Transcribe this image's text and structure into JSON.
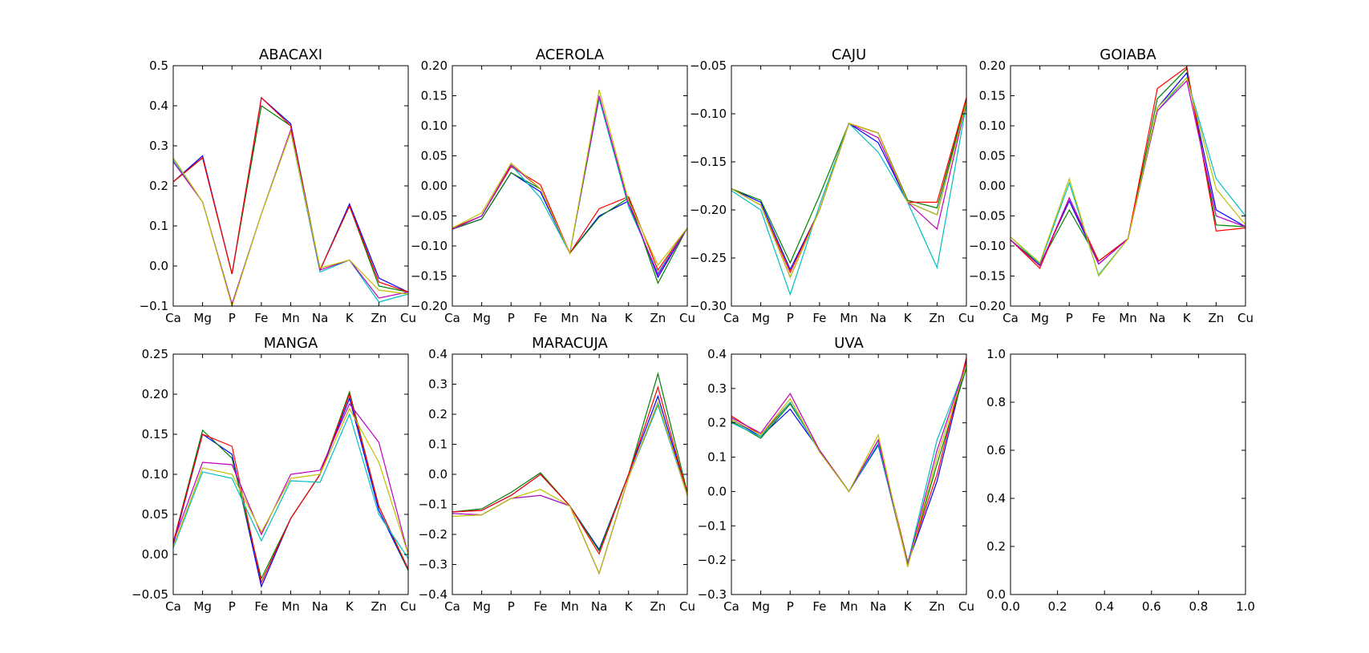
{
  "chart_data": [
    {
      "type": "line",
      "title": "ABACAXI",
      "categories": [
        "Ca",
        "Mg",
        "P",
        "Fe",
        "Mn",
        "Na",
        "K",
        "Zn",
        "Cu"
      ],
      "ylim": [
        -0.1,
        0.5
      ],
      "yticks": [
        "0.5",
        "0.4",
        "0.3",
        "0.2",
        "0.1",
        "0.0",
        "−0.1"
      ],
      "ytick_values": [
        0.5,
        0.4,
        0.3,
        0.2,
        0.1,
        0.0,
        -0.1
      ],
      "series": [
        {
          "color": "#0000ff",
          "values": [
            0.21,
            0.275,
            -0.02,
            0.42,
            0.355,
            -0.01,
            0.155,
            -0.03,
            -0.065
          ]
        },
        {
          "color": "#008000",
          "values": [
            0.21,
            0.27,
            -0.02,
            0.4,
            0.35,
            -0.01,
            0.15,
            -0.05,
            -0.065
          ]
        },
        {
          "color": "#ff0000",
          "values": [
            0.21,
            0.27,
            -0.02,
            0.42,
            0.35,
            -0.01,
            0.15,
            -0.04,
            -0.065
          ]
        },
        {
          "color": "#00bfbf",
          "values": [
            0.265,
            0.16,
            -0.095,
            0.13,
            0.335,
            -0.015,
            0.015,
            -0.09,
            -0.07
          ]
        },
        {
          "color": "#bf00bf",
          "values": [
            0.26,
            0.16,
            -0.095,
            0.13,
            0.34,
            -0.01,
            0.015,
            -0.08,
            -0.065
          ]
        },
        {
          "color": "#bfbf00",
          "values": [
            0.27,
            0.16,
            -0.1,
            0.13,
            0.335,
            -0.005,
            0.015,
            -0.06,
            -0.07
          ]
        }
      ]
    },
    {
      "type": "line",
      "title": "ACEROLA",
      "categories": [
        "Ca",
        "Mg",
        "P",
        "Fe",
        "Mn",
        "Na",
        "K",
        "Zn",
        "Cu"
      ],
      "ylim": [
        -0.2,
        0.2
      ],
      "yticks": [
        "0.20",
        "0.15",
        "0.10",
        "0.05",
        "0.00",
        "−0.05",
        "−0.10",
        "−0.15",
        "−0.20"
      ],
      "ytick_values": [
        0.2,
        0.15,
        0.1,
        0.05,
        0.0,
        -0.05,
        -0.1,
        -0.15,
        -0.2
      ],
      "series": [
        {
          "color": "#0000ff",
          "values": [
            -0.072,
            -0.055,
            0.022,
            -0.01,
            -0.112,
            -0.05,
            -0.025,
            -0.152,
            -0.07
          ]
        },
        {
          "color": "#008000",
          "values": [
            -0.072,
            -0.055,
            0.022,
            -0.005,
            -0.112,
            -0.052,
            -0.02,
            -0.162,
            -0.07
          ]
        },
        {
          "color": "#ff0000",
          "values": [
            -0.07,
            -0.05,
            0.032,
            0.002,
            -0.112,
            -0.038,
            -0.018,
            -0.14,
            -0.07
          ]
        },
        {
          "color": "#00bfbf",
          "values": [
            -0.072,
            -0.05,
            0.035,
            -0.02,
            -0.112,
            0.145,
            -0.035,
            -0.145,
            -0.07
          ]
        },
        {
          "color": "#bf00bf",
          "values": [
            -0.072,
            -0.05,
            0.035,
            -0.005,
            -0.112,
            0.15,
            -0.03,
            -0.148,
            -0.07
          ]
        },
        {
          "color": "#bfbf00",
          "values": [
            -0.07,
            -0.045,
            0.038,
            -0.005,
            -0.112,
            0.16,
            -0.025,
            -0.132,
            -0.07
          ]
        }
      ]
    },
    {
      "type": "line",
      "title": "CAJU",
      "categories": [
        "Ca",
        "Mg",
        "P",
        "Fe",
        "Mn",
        "Na",
        "K",
        "Zn",
        "Cu"
      ],
      "ylim": [
        -0.3,
        -0.05
      ],
      "yticks": [
        "−0.05",
        "−0.10",
        "−0.15",
        "−0.20",
        "−0.25",
        "−0.30"
      ],
      "ytick_values": [
        -0.05,
        -0.1,
        -0.15,
        -0.2,
        -0.25,
        -0.3
      ],
      "series": [
        {
          "color": "#0000ff",
          "values": [
            -0.178,
            -0.192,
            -0.262,
            -0.2,
            -0.11,
            -0.13,
            -0.192,
            -0.205,
            -0.085
          ]
        },
        {
          "color": "#008000",
          "values": [
            -0.178,
            -0.19,
            -0.255,
            -0.185,
            -0.11,
            -0.12,
            -0.19,
            -0.198,
            -0.085
          ]
        },
        {
          "color": "#ff0000",
          "values": [
            -0.178,
            -0.195,
            -0.265,
            -0.2,
            -0.11,
            -0.12,
            -0.192,
            -0.192,
            -0.083
          ]
        },
        {
          "color": "#00bfbf",
          "values": [
            -0.18,
            -0.2,
            -0.288,
            -0.195,
            -0.11,
            -0.14,
            -0.192,
            -0.26,
            -0.09
          ]
        },
        {
          "color": "#bf00bf",
          "values": [
            -0.178,
            -0.195,
            -0.27,
            -0.2,
            -0.11,
            -0.125,
            -0.192,
            -0.22,
            -0.088
          ]
        },
        {
          "color": "#bfbf00",
          "values": [
            -0.178,
            -0.195,
            -0.27,
            -0.2,
            -0.11,
            -0.12,
            -0.192,
            -0.205,
            -0.088
          ]
        }
      ]
    },
    {
      "type": "line",
      "title": "GOIABA",
      "categories": [
        "Ca",
        "Mg",
        "P",
        "Fe",
        "Mn",
        "Na",
        "K",
        "Zn",
        "Cu"
      ],
      "ylim": [
        -0.2,
        0.2
      ],
      "yticks": [
        "0.20",
        "0.15",
        "0.10",
        "0.05",
        "0.00",
        "−0.05",
        "−0.10",
        "−0.15",
        "−0.20"
      ],
      "ytick_values": [
        0.2,
        0.15,
        0.1,
        0.05,
        0.0,
        -0.05,
        -0.1,
        -0.15,
        -0.2
      ],
      "series": [
        {
          "color": "#0000ff",
          "values": [
            -0.09,
            -0.132,
            -0.025,
            -0.13,
            -0.088,
            0.13,
            0.188,
            -0.04,
            -0.068
          ]
        },
        {
          "color": "#008000",
          "values": [
            -0.09,
            -0.13,
            -0.04,
            -0.125,
            -0.088,
            0.145,
            0.195,
            -0.065,
            -0.068
          ]
        },
        {
          "color": "#ff0000",
          "values": [
            -0.09,
            -0.137,
            -0.02,
            -0.125,
            -0.088,
            0.162,
            0.198,
            -0.075,
            -0.07
          ]
        },
        {
          "color": "#00bfbf",
          "values": [
            -0.085,
            -0.13,
            0.005,
            -0.148,
            -0.088,
            0.125,
            0.18,
            0.012,
            -0.05
          ]
        },
        {
          "color": "#bf00bf",
          "values": [
            -0.09,
            -0.133,
            -0.02,
            -0.13,
            -0.088,
            0.125,
            0.175,
            -0.05,
            -0.068
          ]
        },
        {
          "color": "#bfbf00",
          "values": [
            -0.085,
            -0.128,
            0.012,
            -0.15,
            -0.088,
            0.13,
            0.18,
            -0.005,
            -0.065
          ]
        }
      ]
    },
    {
      "type": "line",
      "title": "MANGA",
      "categories": [
        "Ca",
        "Mg",
        "P",
        "Fe",
        "Mn",
        "Na",
        "K",
        "Zn",
        "Cu"
      ],
      "ylim": [
        -0.05,
        0.25
      ],
      "yticks": [
        "0.25",
        "0.20",
        "0.15",
        "0.10",
        "0.05",
        "0.00",
        "−0.05"
      ],
      "ytick_values": [
        0.25,
        0.2,
        0.15,
        0.1,
        0.05,
        0.0,
        -0.05
      ],
      "series": [
        {
          "color": "#0000ff",
          "values": [
            0.012,
            0.15,
            0.125,
            -0.04,
            0.045,
            0.1,
            0.195,
            0.055,
            -0.02
          ]
        },
        {
          "color": "#008000",
          "values": [
            0.015,
            0.155,
            0.12,
            -0.03,
            0.045,
            0.1,
            0.203,
            0.06,
            -0.02
          ]
        },
        {
          "color": "#ff0000",
          "values": [
            0.015,
            0.15,
            0.135,
            -0.035,
            0.045,
            0.1,
            0.2,
            0.06,
            -0.018
          ]
        },
        {
          "color": "#00bfbf",
          "values": [
            0.008,
            0.103,
            0.095,
            0.017,
            0.092,
            0.09,
            0.175,
            0.05,
            -0.005
          ]
        },
        {
          "color": "#bf00bf",
          "values": [
            0.015,
            0.115,
            0.112,
            0.025,
            0.1,
            0.105,
            0.188,
            0.14,
            0.0
          ]
        },
        {
          "color": "#bfbf00",
          "values": [
            0.01,
            0.108,
            0.1,
            0.028,
            0.095,
            0.1,
            0.182,
            0.115,
            0.0
          ]
        }
      ]
    },
    {
      "type": "line",
      "title": "MARACUJA",
      "categories": [
        "Ca",
        "Mg",
        "P",
        "Fe",
        "Mn",
        "Na",
        "K",
        "Zn",
        "Cu"
      ],
      "ylim": [
        -0.4,
        0.4
      ],
      "yticks": [
        "0.4",
        "0.3",
        "0.2",
        "0.1",
        "0.0",
        "−0.1",
        "−0.2",
        "−0.3",
        "−0.4"
      ],
      "ytick_values": [
        0.4,
        0.3,
        0.2,
        0.1,
        0.0,
        -0.1,
        -0.2,
        -0.3,
        -0.4
      ],
      "series": [
        {
          "color": "#0000ff",
          "values": [
            -0.125,
            -0.12,
            -0.07,
            0.0,
            -0.105,
            -0.25,
            0.0,
            0.26,
            -0.065
          ]
        },
        {
          "color": "#008000",
          "values": [
            -0.125,
            -0.115,
            -0.06,
            0.005,
            -0.105,
            -0.255,
            0.0,
            0.335,
            -0.06
          ]
        },
        {
          "color": "#ff0000",
          "values": [
            -0.125,
            -0.12,
            -0.07,
            0.0,
            -0.105,
            -0.265,
            0.0,
            0.29,
            -0.065
          ]
        },
        {
          "color": "#00bfbf",
          "values": [
            -0.13,
            -0.135,
            -0.08,
            -0.07,
            -0.105,
            -0.33,
            -0.01,
            0.23,
            -0.07
          ]
        },
        {
          "color": "#bf00bf",
          "values": [
            -0.13,
            -0.135,
            -0.08,
            -0.07,
            -0.105,
            -0.33,
            -0.01,
            0.24,
            -0.07
          ]
        },
        {
          "color": "#bfbf00",
          "values": [
            -0.14,
            -0.135,
            -0.08,
            -0.05,
            -0.105,
            -0.33,
            -0.01,
            0.24,
            -0.07
          ]
        }
      ]
    },
    {
      "type": "line",
      "title": "UVA",
      "categories": [
        "Ca",
        "Mg",
        "P",
        "Fe",
        "Mn",
        "Na",
        "K",
        "Zn",
        "Cu"
      ],
      "ylim": [
        -0.3,
        0.4
      ],
      "yticks": [
        "0.4",
        "0.3",
        "0.2",
        "0.1",
        "0.0",
        "−0.1",
        "−0.2",
        "−0.3"
      ],
      "ytick_values": [
        0.4,
        0.3,
        0.2,
        0.1,
        0.0,
        -0.1,
        -0.2,
        -0.3
      ],
      "series": [
        {
          "color": "#0000ff",
          "values": [
            0.21,
            0.16,
            0.24,
            0.12,
            0.0,
            0.135,
            -0.21,
            0.03,
            0.38
          ]
        },
        {
          "color": "#008000",
          "values": [
            0.205,
            0.155,
            0.255,
            0.12,
            0.0,
            0.14,
            -0.215,
            0.08,
            0.36
          ]
        },
        {
          "color": "#ff0000",
          "values": [
            0.22,
            0.165,
            0.26,
            0.12,
            0.0,
            0.15,
            -0.205,
            0.05,
            0.39
          ]
        },
        {
          "color": "#00bfbf",
          "values": [
            0.2,
            0.16,
            0.26,
            0.115,
            0.0,
            0.14,
            -0.21,
            0.15,
            0.37
          ]
        },
        {
          "color": "#bf00bf",
          "values": [
            0.215,
            0.17,
            0.285,
            0.12,
            0.0,
            0.15,
            -0.215,
            0.12,
            0.375
          ]
        },
        {
          "color": "#bfbf00",
          "values": [
            0.21,
            0.165,
            0.27,
            0.115,
            0.0,
            0.165,
            -0.22,
            0.1,
            0.37
          ]
        }
      ]
    },
    {
      "type": "line",
      "title": "",
      "categories": [],
      "xticks": [
        "0.0",
        "0.2",
        "0.4",
        "0.6",
        "0.8",
        "1.0"
      ],
      "xtick_values": [
        0.0,
        0.2,
        0.4,
        0.6,
        0.8,
        1.0
      ],
      "xlim": [
        0.0,
        1.0
      ],
      "ylim": [
        0.0,
        1.0
      ],
      "yticks": [
        "1.0",
        "0.8",
        "0.6",
        "0.4",
        "0.2",
        "0.0"
      ],
      "ytick_values": [
        1.0,
        0.8,
        0.6,
        0.4,
        0.2,
        0.0
      ],
      "series": []
    }
  ]
}
